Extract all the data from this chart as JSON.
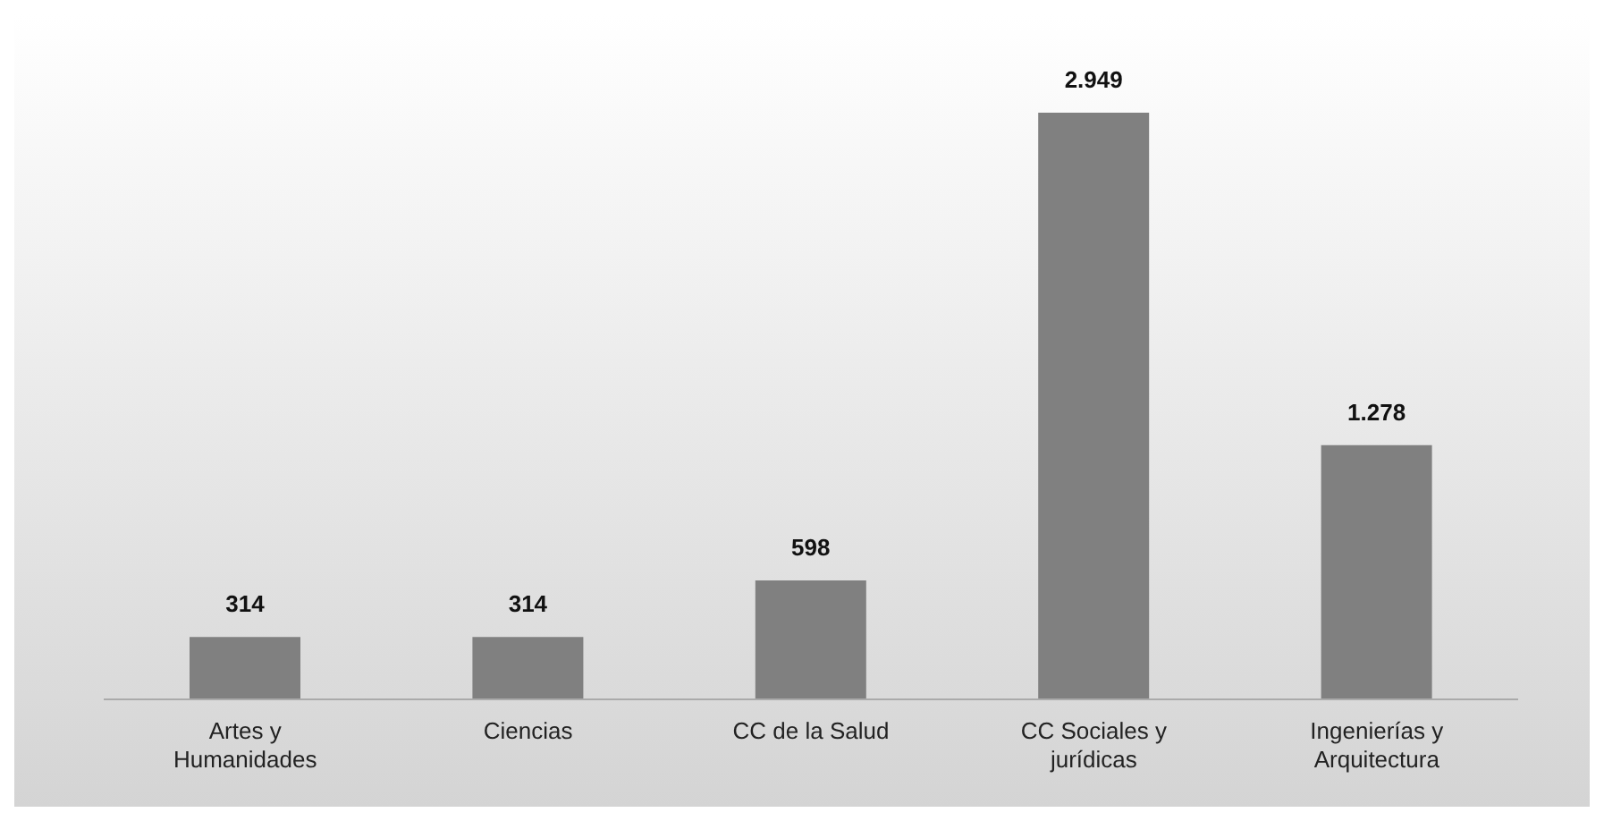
{
  "chart_data": {
    "type": "bar",
    "categories": [
      "Artes y Humanidades",
      "Ciencias",
      "CC de la Salud",
      "CC Sociales y jurídicas",
      "Ingenierías y Arquitectura"
    ],
    "values": [
      314,
      314,
      598,
      2949,
      1278
    ],
    "value_labels": [
      "314",
      "314",
      "598",
      "2.949",
      "1.278"
    ],
    "color": "#808080",
    "grid": false,
    "legend": false
  }
}
